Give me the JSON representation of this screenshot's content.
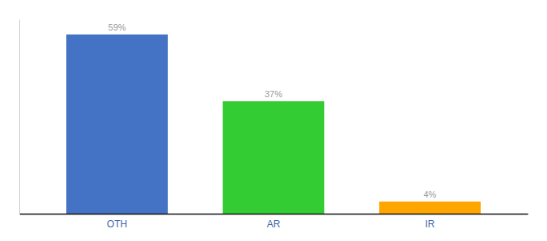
{
  "chart_data": {
    "type": "bar",
    "categories": [
      "OTH",
      "AR",
      "IR"
    ],
    "values": [
      59,
      37,
      4
    ],
    "value_labels": [
      "59%",
      "37%",
      "4%"
    ],
    "colors": [
      "#4472C4",
      "#33CC33",
      "#FFA500"
    ],
    "ylim": [
      0,
      64
    ],
    "data_labels": true,
    "tick_labels": "x"
  }
}
